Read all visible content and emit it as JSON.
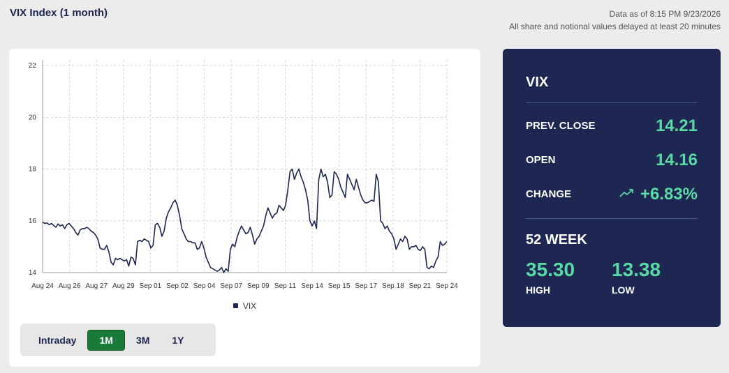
{
  "header": {
    "title": "VIX Index (1 month)",
    "data_as_of": "Data as of 8:15 PM 9/23/2026",
    "delay_note": "All share and notional values delayed at least 20 minutes"
  },
  "chart_data": {
    "type": "line",
    "title": "",
    "xlabel": "",
    "ylabel": "",
    "ylim": [
      14,
      22
    ],
    "yticks": [
      14,
      16,
      18,
      20,
      22
    ],
    "x_tick_labels": [
      "Aug 24",
      "Aug 26",
      "Aug 27",
      "Aug 29",
      "Sep 01",
      "Sep 02",
      "Sep 04",
      "Sep 07",
      "Sep 09",
      "Sep 11",
      "Sep 14",
      "Sep 15",
      "Sep 17",
      "Sep 18",
      "Sep 21",
      "Sep 24"
    ],
    "grid": true,
    "legend": "bottom-center",
    "series": [
      {
        "name": "VIX",
        "color": "#1c2650",
        "values": [
          15.95,
          15.9,
          15.92,
          15.85,
          15.9,
          15.82,
          15.75,
          15.88,
          15.8,
          15.85,
          15.7,
          15.85,
          15.9,
          15.8,
          15.7,
          15.55,
          15.45,
          15.65,
          15.7,
          15.7,
          15.75,
          15.7,
          15.6,
          15.55,
          15.45,
          15.3,
          14.95,
          14.9,
          14.9,
          15.05,
          14.8,
          14.4,
          14.3,
          14.55,
          14.5,
          14.55,
          14.5,
          14.45,
          14.5,
          14.25,
          14.6,
          14.55,
          14.3,
          15.2,
          15.25,
          15.2,
          15.3,
          15.25,
          15.2,
          14.95,
          15.05,
          15.85,
          15.9,
          15.75,
          15.4,
          15.6,
          16.1,
          16.35,
          16.5,
          16.7,
          16.8,
          16.6,
          16.2,
          15.7,
          15.5,
          15.3,
          15.2,
          15.2,
          15.15,
          15.15,
          14.9,
          14.95,
          15.2,
          14.95,
          14.6,
          14.4,
          14.2,
          14.15,
          14.1,
          14.05,
          14.1,
          14.2,
          14.0,
          14.15,
          14.05,
          14.9,
          15.1,
          15.0,
          15.35,
          15.6,
          15.8,
          15.65,
          15.5,
          15.55,
          15.75,
          15.45,
          15.1,
          15.3,
          15.4,
          15.6,
          15.8,
          16.2,
          16.5,
          16.3,
          16.1,
          16.25,
          16.3,
          16.6,
          16.5,
          16.4,
          16.6,
          17.2,
          17.9,
          18.0,
          17.6,
          17.85,
          18.0,
          17.7,
          17.5,
          17.2,
          16.8,
          16.0,
          15.8,
          16.0,
          15.7,
          17.6,
          18.0,
          17.7,
          17.8,
          17.5,
          16.9,
          17.0,
          17.9,
          17.8,
          17.6,
          17.3,
          17.1,
          16.9,
          17.8,
          17.6,
          17.4,
          17.2,
          17.6,
          17.3,
          17.0,
          16.8,
          16.7,
          16.7,
          16.75,
          16.8,
          16.75,
          17.8,
          17.5,
          16.0,
          15.9,
          15.7,
          15.8,
          15.6,
          15.5,
          15.3,
          14.9,
          15.1,
          15.3,
          15.2,
          15.4,
          15.3,
          14.9,
          15.0,
          15.0,
          15.05,
          14.9,
          14.85,
          15.0,
          14.9,
          14.2,
          14.15,
          14.25,
          14.2,
          14.45,
          14.6,
          15.2,
          15.05,
          15.1,
          15.2
        ]
      }
    ]
  },
  "range_selector": {
    "options": [
      "Intraday",
      "1M",
      "3M",
      "1Y"
    ],
    "selected": "1M"
  },
  "stats": {
    "symbol": "VIX",
    "prev_close_label": "PREV. CLOSE",
    "prev_close_value": "14.21",
    "open_label": "OPEN",
    "open_value": "14.16",
    "change_label": "CHANGE",
    "change_value": "+6.83%",
    "change_icon": "trending-up-icon",
    "week52_title": "52 WEEK",
    "high_value": "35.30",
    "high_label": "HIGH",
    "low_value": "13.38",
    "low_label": "LOW",
    "accent_color": "#5ad8a6"
  }
}
